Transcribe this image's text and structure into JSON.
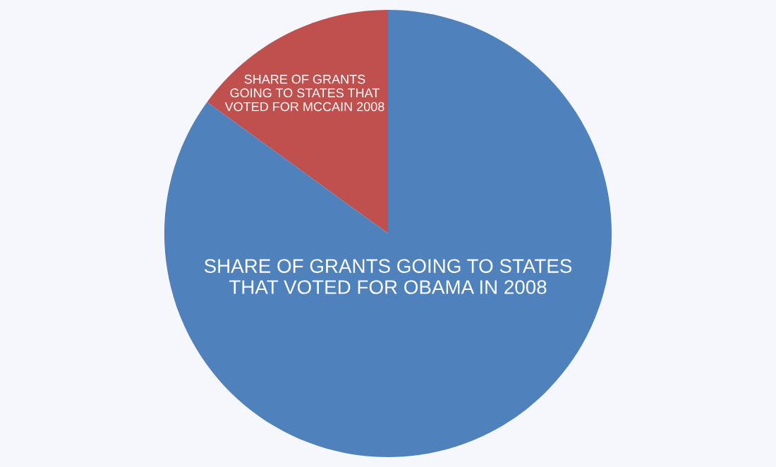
{
  "chart_data": {
    "type": "pie",
    "categories": [
      "SHARE OF GRANTS\nGOING TO STATES THAT\nVOTED FOR MCCAIN 2008",
      "SHARE OF GRANTS GOING TO STATES\nTHAT VOTED FOR OBAMA IN 2008"
    ],
    "values": [
      15,
      85
    ],
    "colors": [
      "#c0504d",
      "#4f81bd"
    ]
  }
}
